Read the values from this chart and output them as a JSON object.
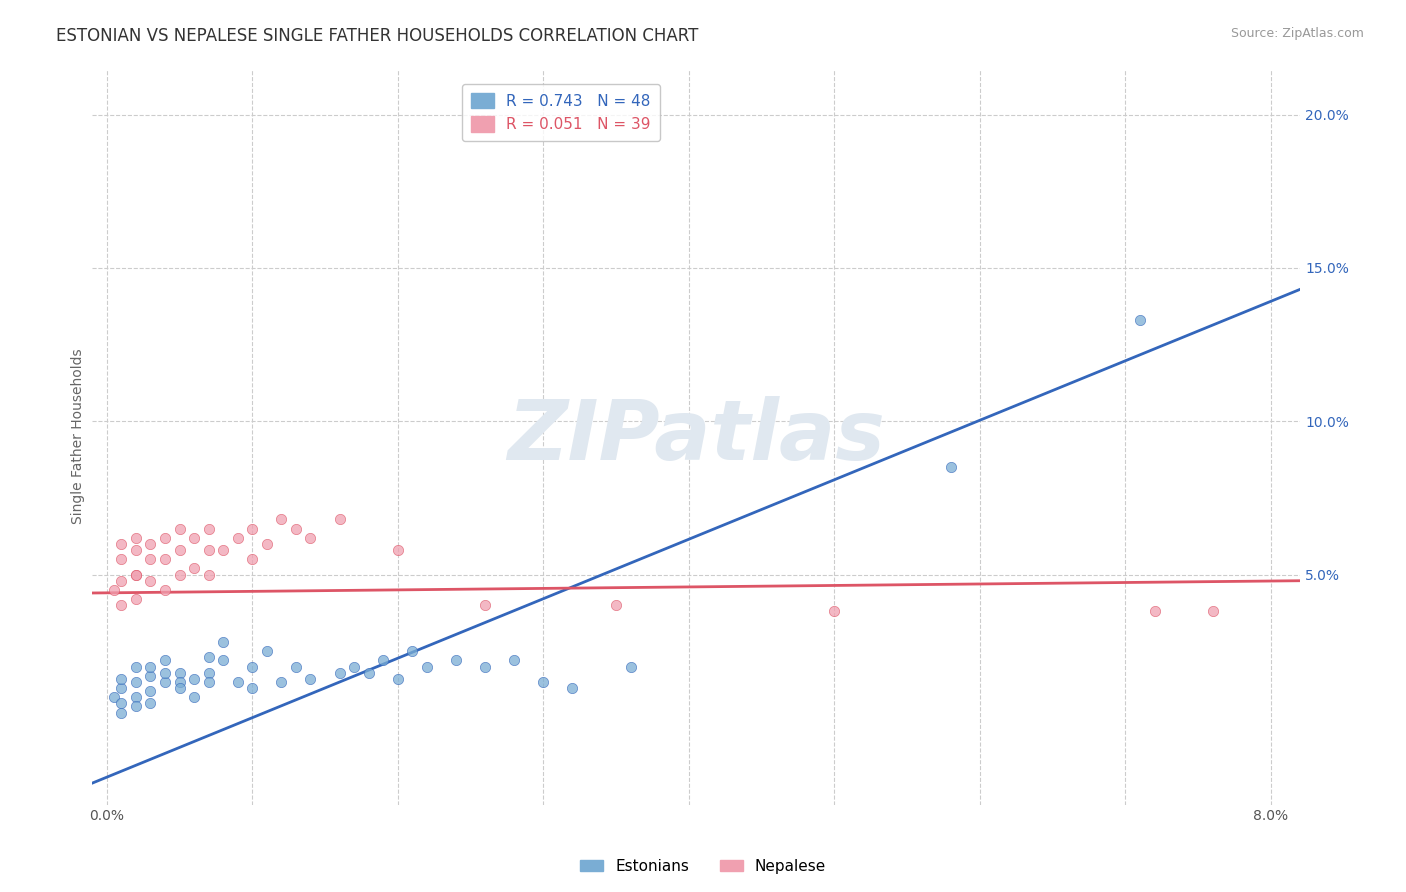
{
  "title": "ESTONIAN VS NEPALESE SINGLE FATHER HOUSEHOLDS CORRELATION CHART",
  "source": "Source: ZipAtlas.com",
  "ylabel": "Single Father Households",
  "watermark": "ZIPatlas",
  "legend_entries": [
    {
      "label": "R = 0.743   N = 48",
      "color": "#6699cc"
    },
    {
      "label": "R = 0.051   N = 39",
      "color": "#ee8899"
    }
  ],
  "legend_labels": [
    "Estonians",
    "Nepalese"
  ],
  "xlim": [
    -0.001,
    0.082
  ],
  "ylim": [
    -0.025,
    0.215
  ],
  "yticks": [
    0.05,
    0.1,
    0.15,
    0.2
  ],
  "ytick_labels": [
    "5.0%",
    "10.0%",
    "15.0%",
    "20.0%"
  ],
  "xticks": [
    0.0,
    0.01,
    0.02,
    0.03,
    0.04,
    0.05,
    0.06,
    0.07,
    0.08
  ],
  "xtick_labels": [
    "0.0%",
    "",
    "",
    "",
    "",
    "",
    "",
    "",
    "8.0%"
  ],
  "blue_scatter": [
    [
      0.0005,
      0.01
    ],
    [
      0.001,
      0.008
    ],
    [
      0.001,
      0.013
    ],
    [
      0.001,
      0.016
    ],
    [
      0.001,
      0.005
    ],
    [
      0.002,
      0.01
    ],
    [
      0.002,
      0.015
    ],
    [
      0.002,
      0.02
    ],
    [
      0.002,
      0.007
    ],
    [
      0.003,
      0.012
    ],
    [
      0.003,
      0.008
    ],
    [
      0.003,
      0.017
    ],
    [
      0.003,
      0.02
    ],
    [
      0.004,
      0.015
    ],
    [
      0.004,
      0.018
    ],
    [
      0.004,
      0.022
    ],
    [
      0.005,
      0.018
    ],
    [
      0.005,
      0.015
    ],
    [
      0.005,
      0.013
    ],
    [
      0.006,
      0.016
    ],
    [
      0.006,
      0.01
    ],
    [
      0.007,
      0.018
    ],
    [
      0.007,
      0.023
    ],
    [
      0.007,
      0.015
    ],
    [
      0.008,
      0.022
    ],
    [
      0.008,
      0.028
    ],
    [
      0.009,
      0.015
    ],
    [
      0.01,
      0.02
    ],
    [
      0.01,
      0.013
    ],
    [
      0.011,
      0.025
    ],
    [
      0.012,
      0.015
    ],
    [
      0.013,
      0.02
    ],
    [
      0.014,
      0.016
    ],
    [
      0.016,
      0.018
    ],
    [
      0.017,
      0.02
    ],
    [
      0.018,
      0.018
    ],
    [
      0.019,
      0.022
    ],
    [
      0.02,
      0.016
    ],
    [
      0.021,
      0.025
    ],
    [
      0.022,
      0.02
    ],
    [
      0.024,
      0.022
    ],
    [
      0.026,
      0.02
    ],
    [
      0.028,
      0.022
    ],
    [
      0.03,
      0.015
    ],
    [
      0.032,
      0.013
    ],
    [
      0.036,
      0.02
    ],
    [
      0.058,
      0.085
    ],
    [
      0.071,
      0.133
    ]
  ],
  "pink_scatter": [
    [
      0.0005,
      0.045
    ],
    [
      0.001,
      0.04
    ],
    [
      0.001,
      0.048
    ],
    [
      0.001,
      0.055
    ],
    [
      0.001,
      0.06
    ],
    [
      0.002,
      0.042
    ],
    [
      0.002,
      0.05
    ],
    [
      0.002,
      0.058
    ],
    [
      0.002,
      0.062
    ],
    [
      0.002,
      0.05
    ],
    [
      0.003,
      0.048
    ],
    [
      0.003,
      0.055
    ],
    [
      0.003,
      0.06
    ],
    [
      0.004,
      0.045
    ],
    [
      0.004,
      0.055
    ],
    [
      0.004,
      0.062
    ],
    [
      0.005,
      0.05
    ],
    [
      0.005,
      0.058
    ],
    [
      0.005,
      0.065
    ],
    [
      0.006,
      0.052
    ],
    [
      0.006,
      0.062
    ],
    [
      0.007,
      0.058
    ],
    [
      0.007,
      0.05
    ],
    [
      0.007,
      0.065
    ],
    [
      0.008,
      0.058
    ],
    [
      0.009,
      0.062
    ],
    [
      0.01,
      0.065
    ],
    [
      0.01,
      0.055
    ],
    [
      0.011,
      0.06
    ],
    [
      0.012,
      0.068
    ],
    [
      0.013,
      0.065
    ],
    [
      0.014,
      0.062
    ],
    [
      0.016,
      0.068
    ],
    [
      0.02,
      0.058
    ],
    [
      0.026,
      0.04
    ],
    [
      0.035,
      0.04
    ],
    [
      0.05,
      0.038
    ],
    [
      0.072,
      0.038
    ],
    [
      0.076,
      0.038
    ]
  ],
  "blue_line": {
    "x": [
      -0.001,
      0.082
    ],
    "y": [
      -0.018,
      0.143
    ]
  },
  "pink_line": {
    "x": [
      -0.001,
      0.082
    ],
    "y": [
      0.044,
      0.048
    ]
  },
  "scatter_color_blue": "#7aadd4",
  "scatter_color_pink": "#f0a0b0",
  "line_color_blue": "#3366bb",
  "line_color_pink": "#dd5566",
  "background_color": "#ffffff",
  "grid_color": "#cccccc",
  "title_fontsize": 12,
  "axis_fontsize": 10,
  "watermark_color": "#e0e8f0",
  "watermark_fontsize": 60,
  "legend_text_blue": "#3366bb",
  "legend_text_pink": "#dd5566"
}
